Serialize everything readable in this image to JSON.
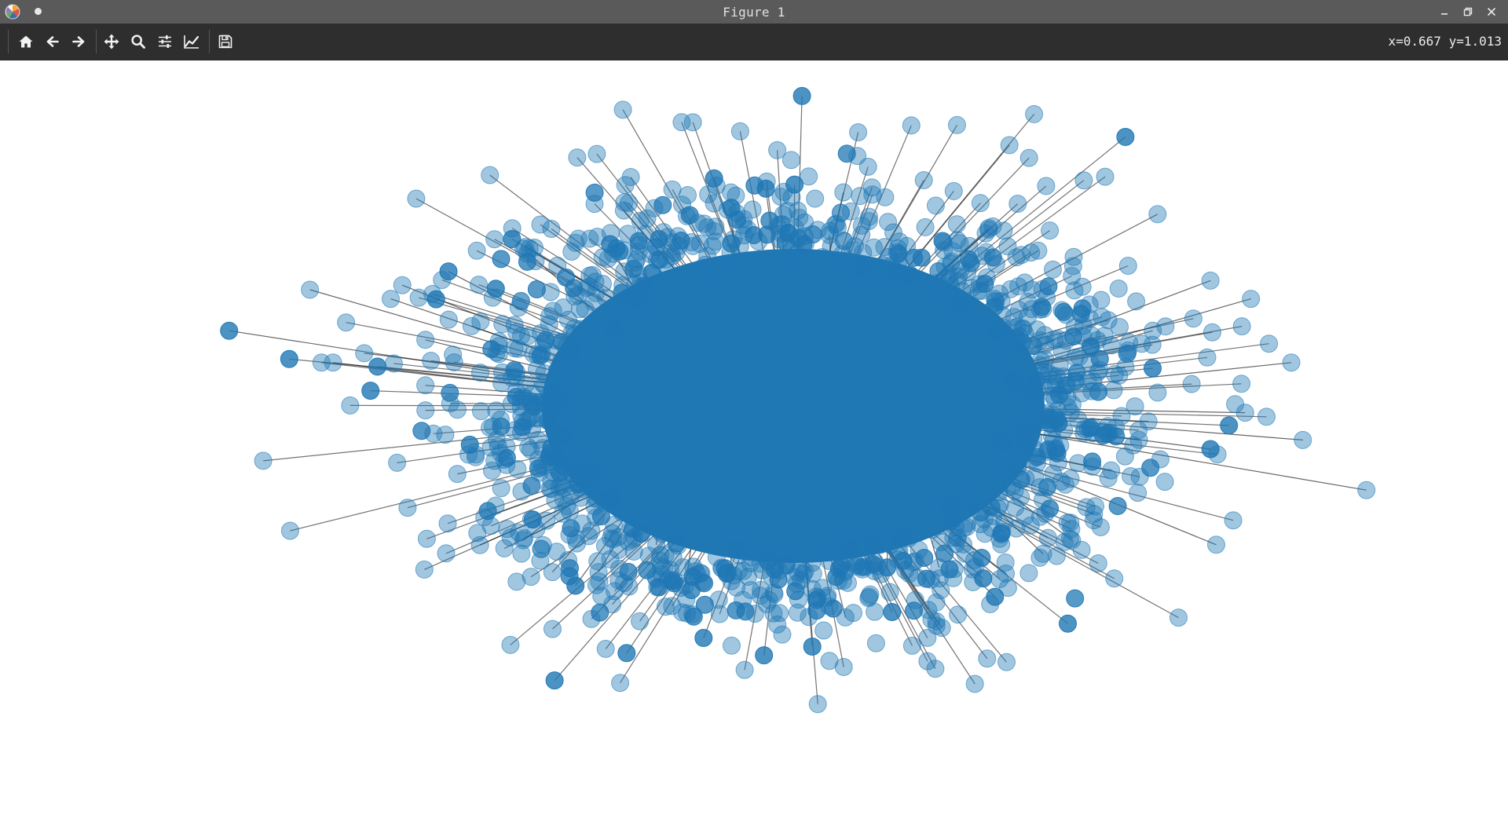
{
  "window": {
    "title": "Figure 1",
    "icons": {
      "app": "matplotlib-logo-icon",
      "unsaved": "dot-indicator-icon",
      "minimize": "minimize-icon",
      "maximize": "restore-icon",
      "close": "close-icon"
    }
  },
  "toolbar": {
    "buttons": [
      {
        "name": "home-button",
        "icon": "home-icon",
        "tooltip": "Reset original view"
      },
      {
        "name": "back-button",
        "icon": "arrow-left-icon",
        "tooltip": "Back to previous view"
      },
      {
        "name": "forward-button",
        "icon": "arrow-right-icon",
        "tooltip": "Forward to next view"
      },
      {
        "name": "pan-button",
        "icon": "move-icon",
        "tooltip": "Pan axes"
      },
      {
        "name": "zoom-button",
        "icon": "magnifier-icon",
        "tooltip": "Zoom to rectangle"
      },
      {
        "name": "subplots-button",
        "icon": "sliders-icon",
        "tooltip": "Configure subplots"
      },
      {
        "name": "customize-button",
        "icon": "line-chart-icon",
        "tooltip": "Edit axis, curve and image parameters"
      },
      {
        "name": "save-button",
        "icon": "floppy-disk-icon",
        "tooltip": "Save the figure"
      }
    ],
    "coordinates": "x=0.667 y=1.013"
  },
  "figure": {
    "node_color": "#1f77b4",
    "edge_color": "#000000",
    "background": "#ffffff"
  },
  "chart_data": {
    "type": "scatter",
    "title": "",
    "xlabel": "",
    "ylabel": "",
    "axes_visible": false,
    "grid": false,
    "description_kind": "network-graph",
    "series": [
      {
        "name": "nodes",
        "color": "#1f77b4",
        "alpha": 0.4,
        "outlier_points": [
          [
            -0.98,
            0.16
          ],
          [
            -0.82,
            0.09
          ],
          [
            -0.8,
            0.09
          ],
          [
            -0.84,
            0.25
          ],
          [
            -0.7,
            0.23
          ],
          [
            -0.68,
            0.26
          ],
          [
            -0.6,
            0.29
          ],
          [
            -0.56,
            0.17
          ],
          [
            -0.64,
            0.04
          ],
          [
            -0.64,
            0.14
          ],
          [
            -0.47,
            -0.3
          ],
          [
            -0.42,
            -0.37
          ],
          [
            -0.38,
            -0.4
          ],
          [
            -0.34,
            -0.37
          ],
          [
            -0.19,
            -0.4
          ],
          [
            -0.11,
            -0.39
          ],
          [
            -0.04,
            -0.38
          ],
          [
            0.03,
            -0.35
          ],
          [
            0.16,
            -0.36
          ],
          [
            0.25,
            -0.36
          ],
          [
            0.45,
            0.14
          ],
          [
            0.62,
            0.16
          ],
          [
            0.78,
            -0.02
          ],
          [
            0.86,
            0.09
          ],
          [
            0.72,
            -0.1
          ],
          [
            0.73,
            -0.31
          ],
          [
            0.88,
            -0.08
          ],
          [
            0.99,
            -0.19
          ],
          [
            0.43,
            -0.33
          ],
          [
            0.48,
            -0.3
          ],
          [
            -0.11,
            0.43
          ],
          [
            -0.03,
            0.39
          ],
          [
            0.06,
            0.37
          ],
          [
            0.1,
            0.28
          ],
          [
            0.31,
            0.16
          ],
          [
            -0.47,
            0.34
          ],
          [
            -0.32,
            0.35
          ],
          [
            0.72,
            0.27
          ],
          [
            0.79,
            0.23
          ],
          [
            -0.24,
            -0.31
          ]
        ]
      }
    ],
    "edges": {
      "color": "#000000",
      "alpha": 0.5
    }
  }
}
